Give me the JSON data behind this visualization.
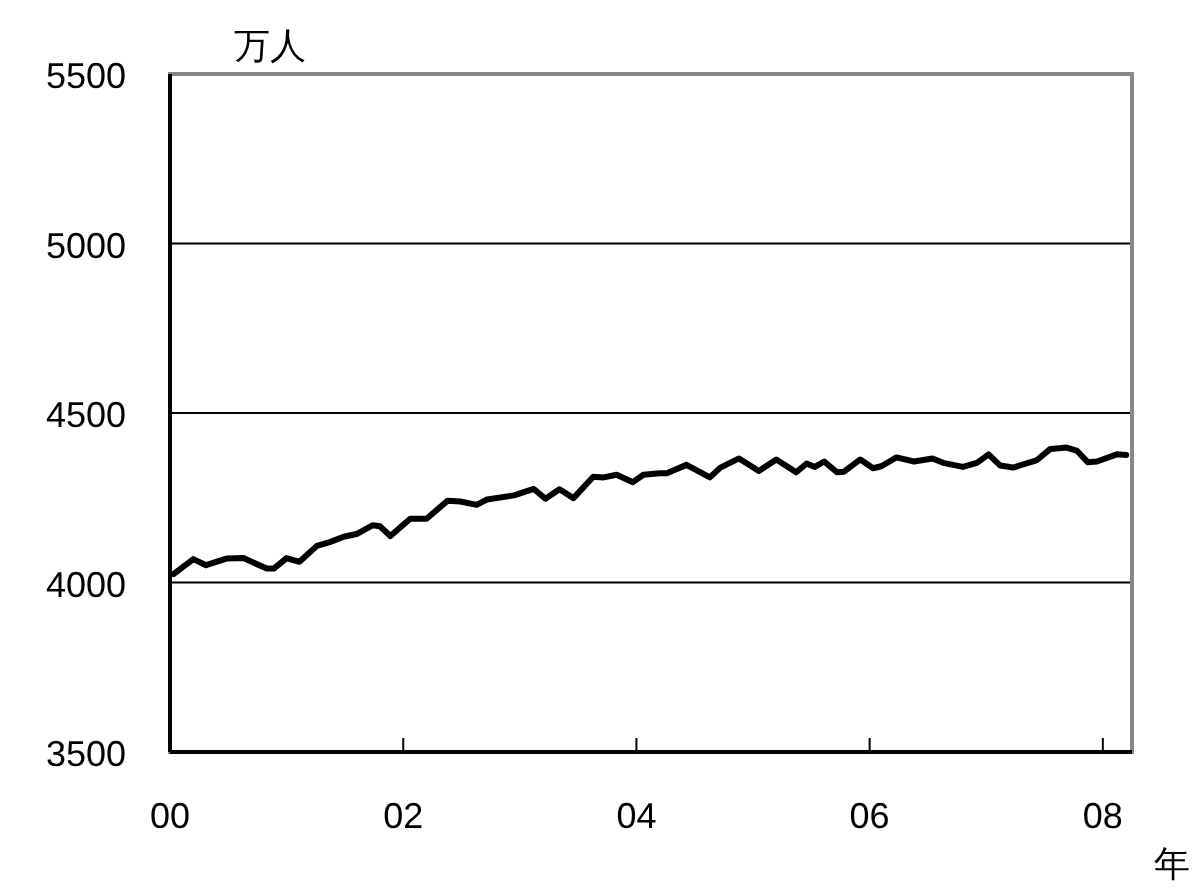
{
  "chart_data": {
    "type": "line",
    "ylabel": "万人",
    "xlabel": "年",
    "x": [
      0.03,
      0.2,
      0.31,
      0.49,
      0.63,
      0.83,
      0.89,
      1.0,
      1.11,
      1.26,
      1.37,
      1.49,
      1.6,
      1.74,
      1.8,
      1.89,
      2.06,
      2.2,
      2.38,
      2.49,
      2.63,
      2.72,
      2.95,
      3.12,
      3.22,
      3.34,
      3.46,
      3.63,
      3.72,
      3.83,
      3.97,
      4.06,
      4.2,
      4.26,
      4.43,
      4.63,
      4.72,
      4.88,
      5.05,
      5.2,
      5.37,
      5.46,
      5.53,
      5.61,
      5.72,
      5.78,
      5.92,
      6.03,
      6.1,
      6.23,
      6.38,
      6.54,
      6.63,
      6.8,
      6.92,
      7.02,
      7.12,
      7.23,
      7.43,
      7.55,
      7.69,
      7.78,
      7.87,
      7.95,
      8.12,
      8.2
    ],
    "series": [
      {
        "color": "#000000",
        "values": [
          4025,
          4069,
          4051,
          4071,
          4072,
          4041,
          4041,
          4072,
          4061,
          4108,
          4119,
          4135,
          4143,
          4169,
          4166,
          4137,
          4188,
          4188,
          4241,
          4239,
          4229,
          4245,
          4257,
          4276,
          4247,
          4275,
          4249,
          4312,
          4310,
          4318,
          4296,
          4318,
          4322,
          4322,
          4347,
          4310,
          4339,
          4366,
          4329,
          4363,
          4325,
          4351,
          4341,
          4357,
          4325,
          4327,
          4363,
          4337,
          4343,
          4369,
          4357,
          4366,
          4353,
          4341,
          4353,
          4378,
          4345,
          4339,
          4360,
          4394,
          4398,
          4388,
          4355,
          4357,
          4378,
          4376
        ]
      }
    ],
    "xlim": [
      0,
      8.25
    ],
    "xticks": [
      {
        "value": 0,
        "label": "00"
      },
      {
        "value": 2,
        "label": "02"
      },
      {
        "value": 4,
        "label": "04"
      },
      {
        "value": 6,
        "label": "06"
      },
      {
        "value": 8,
        "label": "08"
      }
    ],
    "ylim": [
      3500,
      5500
    ],
    "yticks": [
      3500,
      4000,
      4500,
      5000,
      5500
    ],
    "grid": "y"
  }
}
